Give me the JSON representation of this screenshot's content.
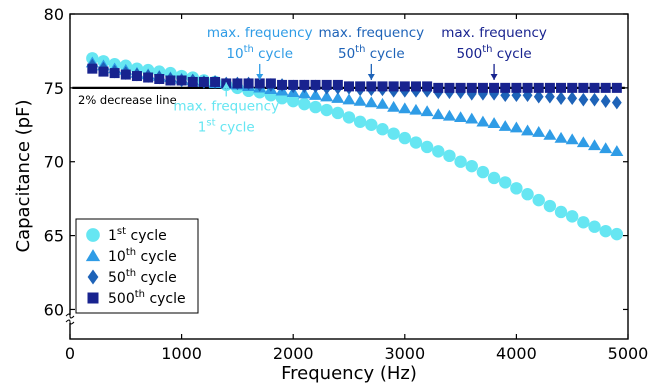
{
  "chart_data": {
    "type": "scatter",
    "xlabel": "Frequency (Hz)",
    "ylabel": "Capacitance (pF)",
    "xlim": [
      0,
      5000
    ],
    "ylim": [
      58,
      80
    ],
    "axis_break": "y-axis, near bottom",
    "xticks": [
      0,
      1000,
      2000,
      3000,
      4000,
      5000
    ],
    "yticks": [
      60,
      65,
      70,
      75,
      80
    ],
    "grid": false,
    "legend": {
      "position": "bottom-left",
      "entries": [
        {
          "base": "1",
          "sup": "st",
          "rest": " cycle"
        },
        {
          "base": "10",
          "sup": "th",
          "rest": " cycle"
        },
        {
          "base": "50",
          "sup": "th",
          "rest": " cycle"
        },
        {
          "base": "500",
          "sup": "th",
          "rest": " cycle"
        }
      ]
    },
    "x": [
      200,
      300,
      400,
      500,
      600,
      700,
      800,
      900,
      1000,
      1100,
      1200,
      1300,
      1400,
      1500,
      1600,
      1700,
      1800,
      1900,
      2000,
      2100,
      2200,
      2300,
      2400,
      2500,
      2600,
      2700,
      2800,
      2900,
      3000,
      3100,
      3200,
      3300,
      3400,
      3500,
      3600,
      3700,
      3800,
      3900,
      4000,
      4100,
      4200,
      4300,
      4400,
      4500,
      4600,
      4700,
      4800,
      4900
    ],
    "series": [
      {
        "name": "1st cycle",
        "marker": "circle",
        "color": "#66e6f2",
        "values": [
          77.0,
          76.8,
          76.6,
          76.5,
          76.3,
          76.2,
          76.1,
          76.0,
          75.8,
          75.7,
          75.5,
          75.4,
          75.2,
          75.0,
          74.8,
          74.7,
          74.5,
          74.3,
          74.1,
          73.9,
          73.7,
          73.5,
          73.3,
          73.0,
          72.7,
          72.5,
          72.2,
          71.9,
          71.6,
          71.3,
          71.0,
          70.7,
          70.4,
          70.0,
          69.7,
          69.3,
          68.9,
          68.6,
          68.2,
          67.8,
          67.4,
          67.0,
          66.6,
          66.3,
          65.9,
          65.6,
          65.3,
          65.1
        ]
      },
      {
        "name": "10th cycle",
        "marker": "triangle",
        "color": "#2f9ce6",
        "values": [
          76.7,
          76.5,
          76.3,
          76.2,
          76.0,
          75.9,
          75.8,
          75.7,
          75.6,
          75.5,
          75.4,
          75.3,
          75.3,
          75.2,
          75.1,
          75.0,
          74.9,
          74.8,
          74.7,
          74.6,
          74.5,
          74.4,
          74.3,
          74.2,
          74.1,
          74.0,
          73.9,
          73.7,
          73.6,
          73.5,
          73.4,
          73.2,
          73.1,
          73.0,
          72.9,
          72.7,
          72.6,
          72.4,
          72.3,
          72.1,
          72.0,
          71.8,
          71.6,
          71.5,
          71.3,
          71.1,
          70.9,
          70.7
        ]
      },
      {
        "name": "50th cycle",
        "marker": "diamond",
        "color": "#1e63b8",
        "values": [
          76.5,
          76.3,
          76.1,
          76.0,
          75.9,
          75.8,
          75.7,
          75.6,
          75.5,
          75.5,
          75.4,
          75.4,
          75.3,
          75.3,
          75.3,
          75.2,
          75.2,
          75.2,
          75.1,
          75.1,
          75.1,
          75.0,
          75.0,
          75.0,
          74.9,
          74.9,
          74.9,
          74.8,
          74.8,
          74.8,
          74.8,
          74.7,
          74.7,
          74.7,
          74.6,
          74.6,
          74.6,
          74.5,
          74.5,
          74.5,
          74.4,
          74.4,
          74.3,
          74.3,
          74.2,
          74.2,
          74.1,
          74.0
        ]
      },
      {
        "name": "500th cycle",
        "marker": "square",
        "color": "#18238f",
        "values": [
          76.3,
          76.1,
          76.0,
          75.9,
          75.8,
          75.7,
          75.6,
          75.5,
          75.5,
          75.4,
          75.4,
          75.4,
          75.3,
          75.3,
          75.3,
          75.3,
          75.3,
          75.2,
          75.2,
          75.2,
          75.2,
          75.2,
          75.2,
          75.1,
          75.1,
          75.1,
          75.1,
          75.1,
          75.1,
          75.1,
          75.1,
          75.0,
          75.0,
          75.0,
          75.0,
          75.0,
          75.0,
          75.0,
          75.0,
          75.0,
          75.0,
          75.0,
          75.0,
          75.0,
          75.0,
          75.0,
          75.0,
          75.0
        ]
      }
    ],
    "reference_line": {
      "label": "2% decrease line",
      "y": 75.0,
      "x": [
        200,
        4900
      ],
      "color": "#000000"
    },
    "annotations": [
      {
        "id": "c1",
        "line1": "max. frequency",
        "base": "1",
        "sup": "st",
        "rest": " cycle",
        "x": 1400,
        "arrow_dir": "up",
        "color": "#66e6f2"
      },
      {
        "id": "c10",
        "line1": "max. frequency",
        "base": "10",
        "sup": "th",
        "rest": " cycle",
        "x": 1700,
        "arrow_dir": "down",
        "color": "#2f9ce6"
      },
      {
        "id": "c50",
        "line1": "max. frequency",
        "base": "50",
        "sup": "th",
        "rest": " cycle",
        "x": 2700,
        "arrow_dir": "down",
        "color": "#1e63b8"
      },
      {
        "id": "c500",
        "line1": "max. frequency",
        "base": "500",
        "sup": "th",
        "rest": " cycle",
        "x": 3800,
        "arrow_dir": "down",
        "color": "#18238f"
      }
    ]
  }
}
